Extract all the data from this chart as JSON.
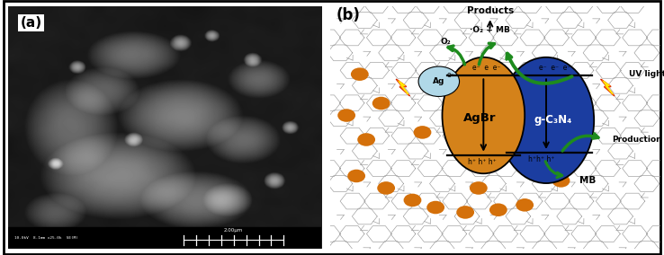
{
  "panel_a_label": "(a)",
  "panel_b_label": "(b)",
  "background_color": "#ffffff",
  "agbr_color": "#D4821A",
  "gcn_color": "#1B3DA0",
  "ag_color": "#B0D8E8",
  "orange_dot_color": "#D4700A",
  "green_arrow_color": "#1E8B1E",
  "products_label": "Products",
  "o2_label": "O₂",
  "o2_mb_label": "·O₂ + MB",
  "agbr_label": "AgBr",
  "gcn_label": "g-C₃N₄",
  "ag_label": "Ag",
  "uv_label": "UV light",
  "mb_label": "MB",
  "production_label": "Production",
  "sem_scale_text": "10.0kV  8.1mm x25.0k  SE(M)",
  "sem_scale_bar": "2.00μm",
  "orange_dots_b": [
    [
      0.9,
      7.2
    ],
    [
      1.55,
      6.0
    ],
    [
      1.1,
      4.5
    ],
    [
      0.8,
      3.0
    ],
    [
      1.7,
      2.5
    ],
    [
      2.5,
      2.0
    ],
    [
      3.2,
      1.7
    ],
    [
      4.1,
      1.5
    ],
    [
      5.1,
      1.6
    ],
    [
      5.9,
      1.8
    ],
    [
      3.0,
      7.0
    ],
    [
      6.5,
      6.8
    ],
    [
      0.5,
      5.5
    ],
    [
      4.8,
      6.3
    ],
    [
      6.0,
      4.5
    ],
    [
      2.8,
      4.8
    ],
    [
      4.5,
      2.5
    ],
    [
      7.0,
      2.8
    ]
  ]
}
